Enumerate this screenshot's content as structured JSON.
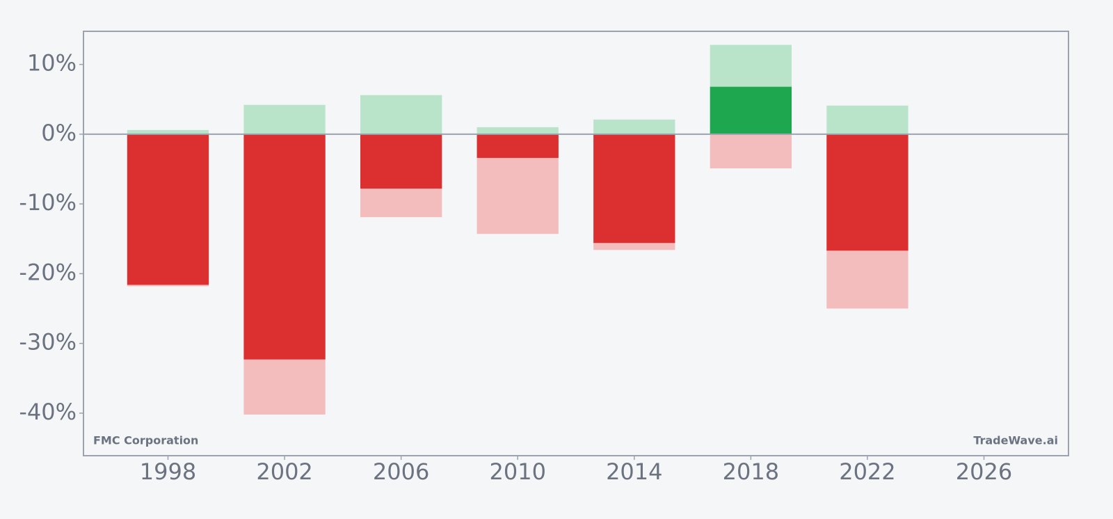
{
  "chart_data": {
    "type": "bar",
    "x": [
      1998,
      2002,
      2006,
      2010,
      2014,
      2018,
      2022
    ],
    "values": [
      -21.6,
      -32.3,
      -7.8,
      -3.4,
      -15.6,
      6.8,
      -16.7
    ],
    "high_values": [
      0.6,
      4.2,
      5.6,
      1.0,
      2.1,
      12.8,
      4.1
    ],
    "low_values": [
      -21.8,
      -40.2,
      -11.9,
      -14.3,
      -16.6,
      -4.9,
      -25.0
    ],
    "up_color": "#1fa750",
    "down_color": "#dc3030",
    "high_color": "#b9e4c9",
    "low_color": "#f4bdbd",
    "xlim": [
      1995.1,
      2028.9
    ],
    "ylim": [
      -46.1,
      14.75
    ],
    "xticks": [
      1998,
      2002,
      2006,
      2010,
      2014,
      2018,
      2022,
      2026
    ],
    "yticks": [
      {
        "value": 10,
        "label": "10%"
      },
      {
        "value": 0,
        "label": "0%"
      },
      {
        "value": -10,
        "label": "-10%"
      },
      {
        "value": -20,
        "label": "-20%"
      },
      {
        "value": -30,
        "label": "-30%"
      },
      {
        "value": -40,
        "label": "-40%"
      }
    ],
    "annotations": [
      "FMC Corporation",
      "TradeWave.ai"
    ]
  }
}
